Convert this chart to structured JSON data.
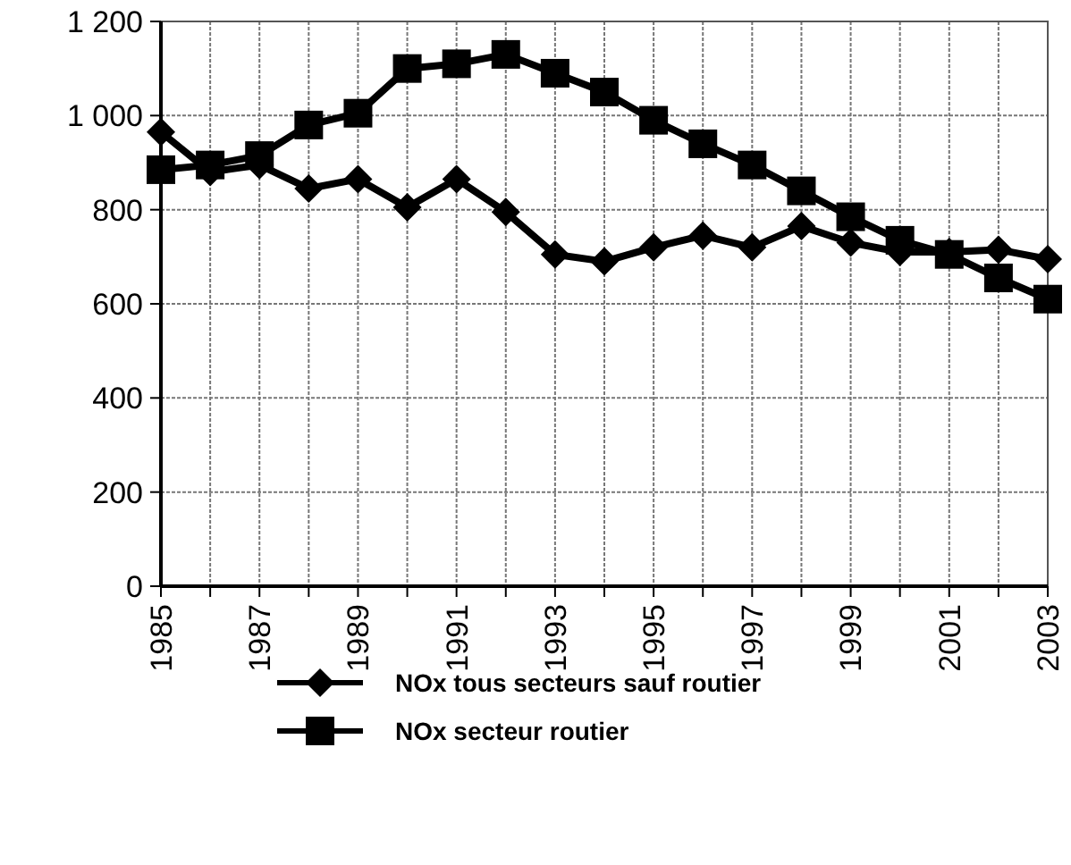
{
  "chart_data": {
    "type": "line",
    "x": [
      1985,
      1986,
      1987,
      1988,
      1989,
      1990,
      1991,
      1992,
      1993,
      1994,
      1995,
      1996,
      1997,
      1998,
      1999,
      2000,
      2001,
      2002,
      2003
    ],
    "series": [
      {
        "name": "NOx tous secteurs sauf routier",
        "color": "#000000",
        "marker": "diamond",
        "values": [
          965,
          880,
          895,
          845,
          865,
          805,
          865,
          795,
          705,
          690,
          720,
          745,
          720,
          765,
          730,
          710,
          710,
          715,
          695
        ]
      },
      {
        "name": "NOx secteur routier",
        "color": "#000000",
        "marker": "square",
        "values": [
          885,
          895,
          915,
          980,
          1005,
          1100,
          1110,
          1130,
          1090,
          1050,
          990,
          940,
          895,
          840,
          785,
          735,
          705,
          655,
          610
        ]
      }
    ],
    "xlim": [
      1985,
      2003
    ],
    "xticks": [
      1985,
      {
        "value": 1986,
        "label": null
      },
      1987,
      {
        "value": 1988,
        "label": null
      },
      1989,
      {
        "value": 1990,
        "label": null
      },
      1991,
      {
        "value": 1992,
        "label": null
      },
      1993,
      {
        "value": 1994,
        "label": null
      },
      1995,
      {
        "value": 1996,
        "label": null
      },
      1997,
      {
        "value": 1998,
        "label": null
      },
      1999,
      {
        "value": 2000,
        "label": null
      },
      2001,
      {
        "value": 2002,
        "label": null
      },
      2003
    ],
    "ylim": [
      0,
      1200
    ],
    "yticks": [
      0,
      200,
      400,
      600,
      800,
      {
        "value": 1000,
        "label": "1 000"
      },
      {
        "value": 1200,
        "label": "1 200"
      }
    ],
    "grid": true,
    "legend": "bottom",
    "line_style": "solid"
  }
}
